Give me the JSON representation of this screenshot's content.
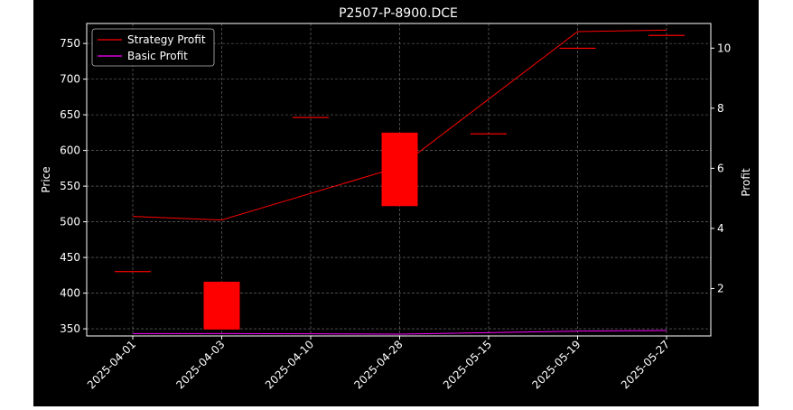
{
  "chart_data": {
    "type": "candlestick",
    "title": "P2507-P-8900.DCE",
    "ylabel": "Price",
    "y2label": "Profit",
    "categories": [
      "2025-04-01",
      "2025-04-03",
      "2025-04-10",
      "2025-04-28",
      "2025-05-15",
      "2025-05-19",
      "2025-05-27"
    ],
    "ylim": [
      340,
      778
    ],
    "y2lim": [
      0.42,
      10.82
    ],
    "yticks": [
      350,
      400,
      450,
      500,
      550,
      600,
      650,
      700,
      750
    ],
    "y2ticks": [
      2,
      4,
      6,
      8,
      10
    ],
    "grid": true,
    "legend_position": "top-left",
    "candles": [
      {
        "date": "2025-04-01",
        "open": 431,
        "close": 431
      },
      {
        "date": "2025-04-03",
        "open": 349,
        "close": 416
      },
      {
        "date": "2025-04-10",
        "open": 647,
        "close": 647
      },
      {
        "date": "2025-04-28",
        "open": 522,
        "close": 625
      },
      {
        "date": "2025-05-15",
        "open": 624,
        "close": 624
      },
      {
        "date": "2025-05-19",
        "open": 744,
        "close": 744
      },
      {
        "date": "2025-05-27",
        "open": 762,
        "close": 762
      }
    ],
    "series": [
      {
        "name": "Strategy Profit",
        "axis": "right",
        "color": "#ff0000",
        "values": [
          4.4,
          4.28,
          null,
          6.05,
          null,
          10.55,
          10.6
        ]
      },
      {
        "name": "Basic Profit",
        "axis": "right",
        "color": "#ff00ff",
        "values": [
          0.5,
          0.5,
          null,
          0.48,
          null,
          0.58,
          0.6
        ]
      }
    ],
    "candle_color": "#ff0000"
  }
}
